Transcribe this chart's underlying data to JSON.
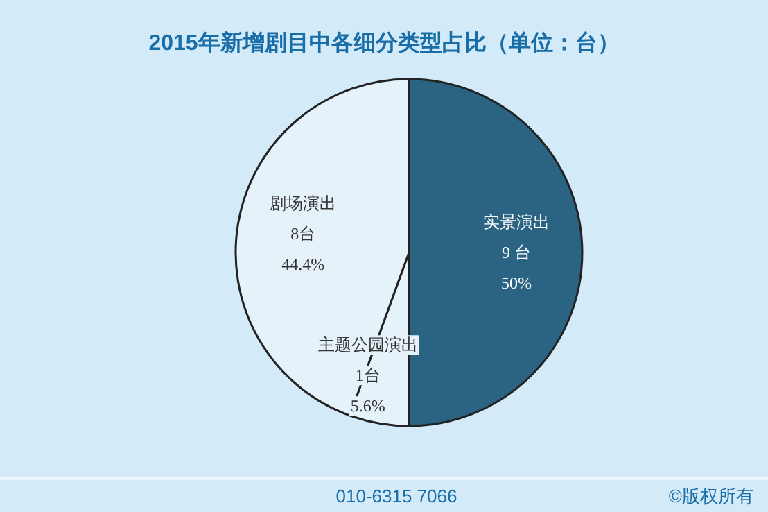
{
  "chart_data": {
    "type": "pie",
    "title": "2015年新增剧目中各细分类型占比（单位：台）",
    "categories": [
      "实景演出",
      "主题公园演出",
      "剧场演出"
    ],
    "values": [
      9,
      1,
      8
    ],
    "colors": [
      "#2b6383",
      "#e6f2fa",
      "#e6f2fa"
    ],
    "value_labels": [
      "9 台",
      "1台",
      "8台"
    ],
    "annotations": [
      {
        "text": "50%",
        "x": "实景演出"
      },
      {
        "text": "5.6%",
        "x": "主题公园演出"
      },
      {
        "text": "44.4%",
        "x": "剧场演出"
      },
      "010-6315 7066",
      "©版权所有"
    ]
  }
}
